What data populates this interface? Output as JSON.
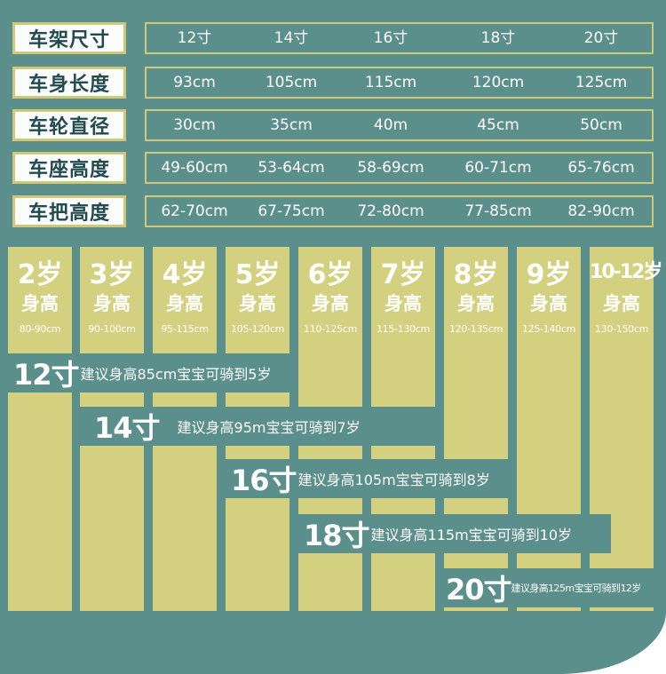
{
  "spec_table": {
    "rows": [
      {
        "label": "车架尺寸",
        "values": [
          "12寸",
          "14寸",
          "16寸",
          "18寸",
          "20寸"
        ]
      },
      {
        "label": "车身长度",
        "values": [
          "93cm",
          "105cm",
          "115cm",
          "120cm",
          "125cm"
        ]
      },
      {
        "label": "车轮直径",
        "values": [
          "30cm",
          "35cm",
          "40m",
          "45cm",
          "50cm"
        ]
      },
      {
        "label": "车座高度",
        "values": [
          "49-60cm",
          "53-64cm",
          "58-69cm",
          "60-71cm",
          "65-76cm"
        ]
      },
      {
        "label": "车把高度",
        "values": [
          "62-70cm",
          "67-75cm",
          "72-80cm",
          "77-85cm",
          "82-90cm"
        ]
      }
    ]
  },
  "age_chart": {
    "height_label": "身高",
    "columns": [
      {
        "age": "2岁",
        "range": "80-90cm"
      },
      {
        "age": "3岁",
        "range": "90-100cm"
      },
      {
        "age": "4岁",
        "range": "95-115cm"
      },
      {
        "age": "5岁",
        "range": "105-120cm"
      },
      {
        "age": "6岁",
        "range": "110-125cm"
      },
      {
        "age": "7岁",
        "range": "115-130cm"
      },
      {
        "age": "8岁",
        "range": "120-135cm"
      },
      {
        "age": "9岁",
        "range": "125-140cm"
      },
      {
        "age": "10-12岁",
        "range": "130-150cm"
      }
    ],
    "recommendations": [
      {
        "size": "12寸",
        "note": "建议身高85cm宝宝可骑到5岁"
      },
      {
        "size": "14寸",
        "note": "建议身高95m宝宝可骑到7岁"
      },
      {
        "size": "16寸",
        "note": "建议身高105m宝宝可骑到8岁"
      },
      {
        "size": "18寸",
        "note": "建议身高115m宝宝可骑到10岁"
      },
      {
        "size": "20寸",
        "note": "建议身高125m宝宝可骑到12岁"
      }
    ]
  },
  "colors": {
    "background": "#5a8f8b",
    "column": "#d3d17f",
    "border": "#cfc779",
    "label_text": "#234b4f"
  }
}
